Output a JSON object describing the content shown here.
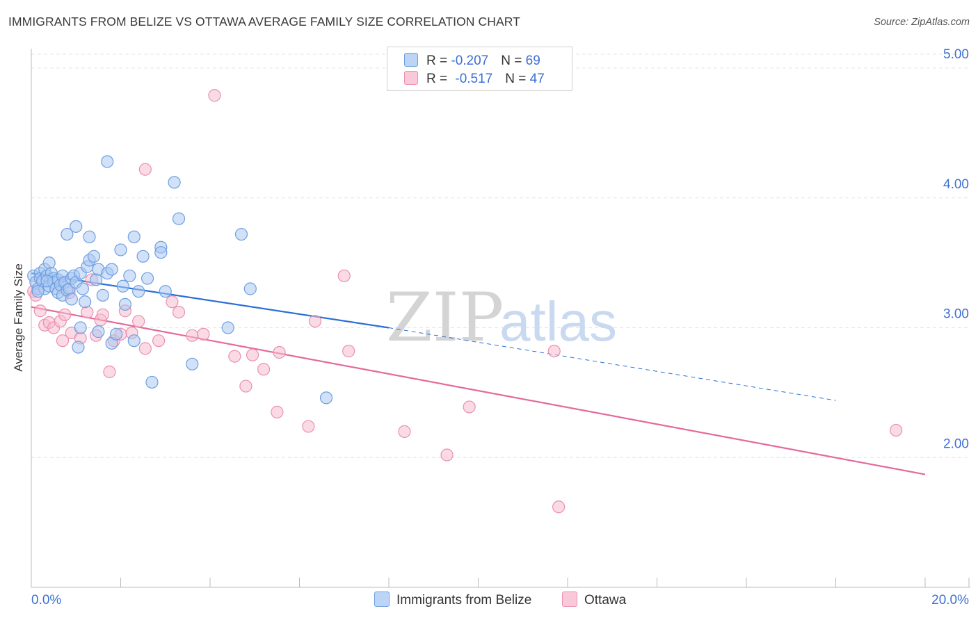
{
  "header": {
    "title": "IMMIGRANTS FROM BELIZE VS OTTAWA AVERAGE FAMILY SIZE CORRELATION CHART",
    "source": "Source: ZipAtlas.com"
  },
  "watermark": {
    "zip": "ZIP",
    "atlas": "atlas"
  },
  "legend": {
    "rows": [
      {
        "r_label": "R = ",
        "r_value": "-0.207",
        "n_label": "N = ",
        "n_value": "69"
      },
      {
        "r_label": "R = ",
        "r_value": "-0.517",
        "n_label": "N = ",
        "n_value": "47"
      }
    ]
  },
  "colors": {
    "blue_fill": "#a9c8f2",
    "blue_stroke": "#6f9fe0",
    "blue_line": "#2a6fd6",
    "pink_fill": "#f6bdd0",
    "pink_stroke": "#ec8fae",
    "pink_line": "#e4699a",
    "axis_label": "#3b6fd4",
    "grid": "#e4e4e4"
  },
  "chart_data": {
    "type": "scatter",
    "title": "IMMIGRANTS FROM BELIZE VS OTTAWA AVERAGE FAMILY SIZE CORRELATION CHART",
    "xlabel": "",
    "ylabel": "Average Family Size",
    "xlim": [
      0,
      0.2
    ],
    "ylim": [
      1.0,
      5.15
    ],
    "x_tick_labels": [
      "0.0%",
      "20.0%"
    ],
    "y_ticks": [
      2.0,
      3.0,
      4.0,
      5.0
    ],
    "y_tick_labels": [
      "2.00",
      "3.00",
      "4.00",
      "5.00"
    ],
    "grid": "horizontal dashed",
    "legend_position": "top-center",
    "series": [
      {
        "name": "Immigrants from Belize",
        "color": "#a9c8f2",
        "r": -0.207,
        "n": 69,
        "trend": {
          "x0": 0.0,
          "y0": 3.42,
          "x1": 0.08,
          "y1": 3.0,
          "dashed_to_x": 0.18,
          "dashed_to_y": 2.44
        },
        "points": [
          [
            0.0005,
            3.4
          ],
          [
            0.001,
            3.35
          ],
          [
            0.0015,
            3.3
          ],
          [
            0.002,
            3.42
          ],
          [
            0.002,
            3.38
          ],
          [
            0.0025,
            3.36
          ],
          [
            0.003,
            3.45
          ],
          [
            0.003,
            3.3
          ],
          [
            0.0035,
            3.4
          ],
          [
            0.004,
            3.32
          ],
          [
            0.004,
            3.5
          ],
          [
            0.0045,
            3.42
          ],
          [
            0.005,
            3.38
          ],
          [
            0.005,
            3.35
          ],
          [
            0.0055,
            3.3
          ],
          [
            0.006,
            3.27
          ],
          [
            0.006,
            3.37
          ],
          [
            0.0065,
            3.33
          ],
          [
            0.007,
            3.25
          ],
          [
            0.007,
            3.4
          ],
          [
            0.0075,
            3.35
          ],
          [
            0.008,
            3.72
          ],
          [
            0.008,
            3.29
          ],
          [
            0.0085,
            3.3
          ],
          [
            0.009,
            3.38
          ],
          [
            0.009,
            3.22
          ],
          [
            0.0095,
            3.4
          ],
          [
            0.01,
            3.78
          ],
          [
            0.01,
            3.35
          ],
          [
            0.0105,
            2.85
          ],
          [
            0.011,
            3.42
          ],
          [
            0.011,
            3.0
          ],
          [
            0.0115,
            3.3
          ],
          [
            0.012,
            3.2
          ],
          [
            0.0125,
            3.47
          ],
          [
            0.013,
            3.7
          ],
          [
            0.013,
            3.52
          ],
          [
            0.014,
            3.55
          ],
          [
            0.0145,
            3.37
          ],
          [
            0.015,
            3.45
          ],
          [
            0.015,
            2.97
          ],
          [
            0.016,
            3.25
          ],
          [
            0.017,
            3.42
          ],
          [
            0.017,
            4.28
          ],
          [
            0.018,
            2.88
          ],
          [
            0.018,
            3.45
          ],
          [
            0.019,
            2.95
          ],
          [
            0.02,
            3.6
          ],
          [
            0.0205,
            3.32
          ],
          [
            0.021,
            3.18
          ],
          [
            0.022,
            3.4
          ],
          [
            0.023,
            3.7
          ],
          [
            0.023,
            2.9
          ],
          [
            0.024,
            3.28
          ],
          [
            0.025,
            3.55
          ],
          [
            0.026,
            3.38
          ],
          [
            0.027,
            2.58
          ],
          [
            0.029,
            3.62
          ],
          [
            0.029,
            3.58
          ],
          [
            0.03,
            3.28
          ],
          [
            0.032,
            4.12
          ],
          [
            0.033,
            3.84
          ],
          [
            0.036,
            2.72
          ],
          [
            0.044,
            3.0
          ],
          [
            0.047,
            3.72
          ],
          [
            0.049,
            3.3
          ],
          [
            0.066,
            2.46
          ],
          [
            0.0015,
            3.28
          ],
          [
            0.0035,
            3.36
          ]
        ]
      },
      {
        "name": "Ottawa",
        "color": "#f6bdd0",
        "r": -0.517,
        "n": 47,
        "trend": {
          "x0": 0.0,
          "y0": 3.16,
          "x1": 0.2,
          "y1": 1.87
        },
        "points": [
          [
            0.0005,
            3.28
          ],
          [
            0.001,
            3.25
          ],
          [
            0.002,
            3.13
          ],
          [
            0.003,
            3.02
          ],
          [
            0.004,
            3.04
          ],
          [
            0.005,
            3.0
          ],
          [
            0.0065,
            3.05
          ],
          [
            0.007,
            2.9
          ],
          [
            0.0075,
            3.1
          ],
          [
            0.0085,
            3.27
          ],
          [
            0.009,
            2.96
          ],
          [
            0.011,
            2.92
          ],
          [
            0.0125,
            3.12
          ],
          [
            0.0135,
            3.37
          ],
          [
            0.0145,
            2.94
          ],
          [
            0.0155,
            3.06
          ],
          [
            0.016,
            3.1
          ],
          [
            0.0175,
            2.66
          ],
          [
            0.0185,
            2.9
          ],
          [
            0.02,
            2.95
          ],
          [
            0.021,
            3.13
          ],
          [
            0.0225,
            2.96
          ],
          [
            0.024,
            3.05
          ],
          [
            0.0255,
            4.22
          ],
          [
            0.0255,
            2.84
          ],
          [
            0.0285,
            2.9
          ],
          [
            0.0315,
            3.2
          ],
          [
            0.033,
            3.12
          ],
          [
            0.036,
            2.94
          ],
          [
            0.0385,
            2.95
          ],
          [
            0.041,
            4.79
          ],
          [
            0.0455,
            2.78
          ],
          [
            0.048,
            2.55
          ],
          [
            0.0495,
            2.79
          ],
          [
            0.052,
            2.68
          ],
          [
            0.055,
            2.35
          ],
          [
            0.0555,
            2.81
          ],
          [
            0.062,
            2.24
          ],
          [
            0.0635,
            3.05
          ],
          [
            0.07,
            3.4
          ],
          [
            0.071,
            2.82
          ],
          [
            0.0835,
            2.2
          ],
          [
            0.093,
            2.02
          ],
          [
            0.098,
            2.39
          ],
          [
            0.117,
            2.82
          ],
          [
            0.118,
            1.62
          ],
          [
            0.1935,
            2.21
          ]
        ]
      }
    ]
  },
  "bottom_legend": {
    "items": [
      {
        "label": "Immigrants from Belize"
      },
      {
        "label": "Ottawa"
      }
    ]
  }
}
